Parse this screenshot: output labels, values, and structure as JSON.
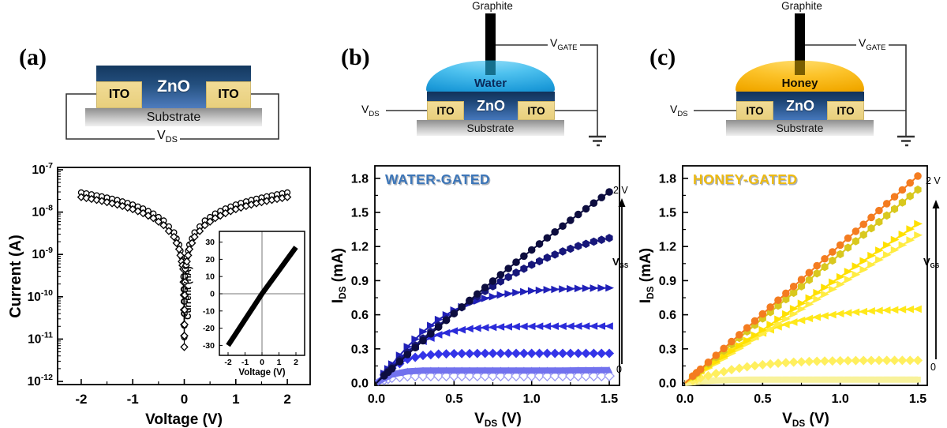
{
  "figure": {
    "panels": {
      "a": {
        "label": "(a)",
        "schematic": {
          "zno": "ZnO",
          "ito": "ITO",
          "substrate": "Substrate",
          "vds": {
            "pre": "V",
            "sub": "DS"
          }
        }
      },
      "b": {
        "label": "(b)",
        "schematic": {
          "graphite": "Graphite",
          "liquid": "Water",
          "liquid_color": "#29A8E0",
          "liquid_label_color": "#0A2A5A",
          "zno": "ZnO",
          "ito": "ITO",
          "substrate": "Substrate",
          "vds": {
            "pre": "V",
            "sub": "DS"
          },
          "vgate": {
            "pre": "V",
            "sub": "GATE"
          }
        }
      },
      "c": {
        "label": "(c)",
        "schematic": {
          "graphite": "Graphite",
          "liquid": "Honey",
          "liquid_color": "#F7B80E",
          "liquid_label_color": "#151000",
          "zno": "ZnO",
          "ito": "ITO",
          "substrate": "Substrate",
          "vds": {
            "pre": "V",
            "sub": "DS"
          },
          "vgate": {
            "pre": "V",
            "sub": "GATE"
          }
        }
      }
    }
  },
  "chart_data": [
    {
      "id": "iv-log",
      "panel": "a",
      "type": "scatter",
      "title": "",
      "xlabel": "Voltage (V)",
      "ylabel": "Current (A)",
      "y_scale": "log",
      "x_ticks": [
        -2,
        -1,
        0,
        1,
        2
      ],
      "x_minor_ticks": [
        -1.5,
        -0.5,
        0.5,
        1.5
      ],
      "y_tick_exponents": [
        -7,
        -8,
        -9,
        -10,
        -11,
        -12
      ],
      "xlim": [
        -2.45,
        2.45
      ],
      "ylim_exponents": [
        -12,
        -7
      ],
      "grid": false,
      "legend": "none",
      "series": [
        {
          "name": "sweep-1",
          "marker": "circle-open",
          "color": "#000000",
          "x": [
            -2,
            -1.8,
            -1.6,
            -1.4,
            -1.2,
            -1.0,
            -0.8,
            -0.6,
            -0.4,
            -0.2,
            -0.1,
            -0.05,
            -0.02,
            -0.01,
            -0.005,
            0,
            0.005,
            0.01,
            0.02,
            0.05,
            0.1,
            0.2,
            0.4,
            0.6,
            0.8,
            1.0,
            1.2,
            1.4,
            1.6,
            1.8,
            2
          ],
          "y": [
            2.9e-08,
            2.62e-08,
            2.34e-08,
            2.06e-08,
            1.78e-08,
            1.5e-08,
            1.21e-08,
            9.2e-09,
            6.3e-09,
            3.3e-09,
            1.7e-09,
            8.7e-10,
            6e-10,
            1.5e-10,
            4e-11,
            1.1e-11,
            4e-11,
            1.5e-10,
            6e-10,
            8.7e-10,
            1.7e-09,
            3.3e-09,
            6.3e-09,
            9.2e-09,
            1.21e-08,
            1.5e-08,
            1.78e-08,
            2.06e-08,
            2.34e-08,
            2.62e-08,
            2.9e-08
          ]
        },
        {
          "name": "sweep-2",
          "marker": "diamond-open",
          "color": "#000000",
          "x": [
            -2,
            -1.8,
            -1.6,
            -1.4,
            -1.2,
            -1.0,
            -0.8,
            -0.6,
            -0.4,
            -0.2,
            -0.1,
            -0.05,
            -0.02,
            -0.01,
            -0.005,
            0,
            0.005,
            0.01,
            0.02,
            0.05,
            0.1,
            0.2,
            0.4,
            0.6,
            0.8,
            1.0,
            1.2,
            1.4,
            1.6,
            1.8,
            2
          ],
          "y": [
            2.26e-08,
            2.04e-08,
            1.83e-08,
            1.61e-08,
            1.39e-08,
            1.17e-08,
            9.4e-09,
            7.2e-09,
            4.9e-09,
            2.6e-09,
            1.33e-09,
            6.8e-10,
            4.5e-10,
            1.1e-10,
            2.2e-11,
            6.5e-12,
            2.2e-11,
            1.1e-10,
            4.5e-10,
            6.8e-10,
            1.33e-09,
            2.6e-09,
            4.9e-09,
            7.2e-09,
            9.4e-09,
            1.17e-08,
            1.39e-08,
            1.61e-08,
            1.83e-08,
            2.04e-08,
            2.26e-08
          ]
        }
      ]
    },
    {
      "id": "iv-inset",
      "panel": "a",
      "type": "line",
      "xlabel": "Voltage (V)",
      "ylabel": "Current (nA)",
      "x_ticks": [
        -2,
        -1,
        0,
        1,
        2
      ],
      "y_ticks": [
        30,
        20,
        10,
        0,
        -10,
        -20,
        -30
      ],
      "xlim": [
        -2.5,
        2.5
      ],
      "ylim": [
        -36,
        33
      ],
      "crosshair": true,
      "series": [
        {
          "name": "linear-iv",
          "color": "#000000",
          "x": [
            -2,
            -1.5,
            -1,
            -0.5,
            0,
            0.5,
            1,
            1.5,
            2
          ],
          "y": [
            -30,
            -22.5,
            -15,
            -7.5,
            0,
            6.8,
            13.5,
            20.3,
            27
          ]
        }
      ]
    },
    {
      "id": "water-gated",
      "panel": "b",
      "type": "scatter-line",
      "title": "WATER-GATED",
      "title_color": "#3D76B8",
      "xlabel": {
        "pre": "V",
        "sub": "DS",
        "post": " (V)"
      },
      "ylabel": {
        "pre": "I",
        "sub": "DS",
        "post": " (mA)"
      },
      "x_ticks": [
        "0.0",
        "0.5",
        "1.0",
        "1.5"
      ],
      "y_ticks": [
        "0.0",
        "0.3",
        "0.6",
        "0.9",
        "1.2",
        "1.5",
        "1.8"
      ],
      "xlim": [
        0,
        1.57
      ],
      "ylim": [
        0,
        1.91
      ],
      "grid": false,
      "gate_annotation": {
        "top": "2 V",
        "bottom": "0",
        "arrow_label": {
          "pre": "V",
          "sub": "GS"
        }
      },
      "x": [
        0.05,
        0.1,
        0.2,
        0.3,
        0.4,
        0.5,
        0.6,
        0.7,
        0.8,
        0.9,
        1.0,
        1.1,
        1.2,
        1.3,
        1.4,
        1.5
      ],
      "series": [
        {
          "name": "vgs-2.0V",
          "marker": "circle",
          "color": "#0D0D3F",
          "y": [
            0.063,
            0.126,
            0.25,
            0.372,
            0.492,
            0.61,
            0.726,
            0.84,
            0.952,
            1.062,
            1.17,
            1.276,
            1.38,
            1.482,
            1.582,
            1.68
          ]
        },
        {
          "name": "vgs-step-5",
          "marker": "hexagon",
          "color": "#17177A",
          "y": [
            0.07,
            0.138,
            0.269,
            0.392,
            0.507,
            0.615,
            0.715,
            0.808,
            0.893,
            0.97,
            1.04,
            1.102,
            1.157,
            1.204,
            1.243,
            1.275
          ]
        },
        {
          "name": "vgs-step-4",
          "marker": "triangle-right",
          "color": "#2020B8",
          "y": [
            0.084,
            0.166,
            0.319,
            0.451,
            0.558,
            0.64,
            0.7,
            0.744,
            0.774,
            0.795,
            0.81,
            0.82,
            0.826,
            0.831,
            0.834,
            0.836
          ]
        },
        {
          "name": "vgs-step-3",
          "marker": "triangle-left",
          "color": "#2B2BD9",
          "y": [
            0.077,
            0.151,
            0.277,
            0.367,
            0.424,
            0.458,
            0.477,
            0.487,
            0.493,
            0.496,
            0.498,
            0.499,
            0.499,
            0.5,
            0.5,
            0.5
          ]
        },
        {
          "name": "vgs-step-2",
          "marker": "diamond",
          "color": "#3434E8",
          "y": [
            0.07,
            0.131,
            0.209,
            0.242,
            0.254,
            0.258,
            0.259,
            0.26,
            0.26,
            0.26,
            0.26,
            0.26,
            0.26,
            0.26,
            0.26,
            0.26
          ]
        },
        {
          "name": "vgs-step-1",
          "marker": "triangle-up",
          "color": "#7272EE",
          "band": true,
          "y": [
            0.042,
            0.075,
            0.102,
            0.109,
            0.11,
            0.11,
            0.11,
            0.11,
            0.11,
            0.11,
            0.11,
            0.11,
            0.11,
            0.111,
            0.112,
            0.113
          ]
        },
        {
          "name": "vgs-0V",
          "marker": "diamond-open",
          "color": "#9A9AF2",
          "y": [
            0.028,
            0.047,
            0.06,
            0.062,
            0.062,
            0.062,
            0.062,
            0.062,
            0.062,
            0.062,
            0.062,
            0.062,
            0.062,
            0.062,
            0.062,
            0.062
          ]
        }
      ]
    },
    {
      "id": "honey-gated",
      "panel": "c",
      "type": "scatter-line",
      "title": "HONEY-GATED",
      "title_color": "#EDBA12",
      "xlabel": {
        "pre": "V",
        "sub": "DS",
        "post": " (V)"
      },
      "ylabel": {
        "pre": "I",
        "sub": "DS",
        "post": " (mA)"
      },
      "x_ticks": [
        "0.0",
        "0.5",
        "1.0",
        "1.5"
      ],
      "y_ticks": [
        "0.0",
        "0.3",
        "0.6",
        "0.9",
        "1.2",
        "1.5",
        "1.8"
      ],
      "xlim": [
        0,
        1.57
      ],
      "ylim": [
        0,
        1.91
      ],
      "grid": false,
      "gate_annotation": {
        "top": "2 V",
        "bottom": "0",
        "arrow_label": {
          "pre": "V",
          "sub": "GS"
        }
      },
      "x": [
        0.05,
        0.1,
        0.2,
        0.3,
        0.4,
        0.5,
        0.6,
        0.7,
        0.8,
        0.9,
        1.0,
        1.1,
        1.2,
        1.3,
        1.4,
        1.5
      ],
      "series": [
        {
          "name": "vgs-2.0V",
          "marker": "circle",
          "color": "#F47C20",
          "y": [
            0.061,
            0.121,
            0.243,
            0.364,
            0.485,
            0.607,
            0.728,
            0.849,
            0.97,
            1.092,
            1.213,
            1.334,
            1.456,
            1.577,
            1.698,
            1.82
          ]
        },
        {
          "name": "vgs-step-5",
          "marker": "hexagon",
          "color": "#D9C81E",
          "y": [
            0.057,
            0.113,
            0.227,
            0.34,
            0.453,
            0.567,
            0.68,
            0.793,
            0.907,
            1.02,
            1.133,
            1.247,
            1.36,
            1.473,
            1.587,
            1.7
          ]
        },
        {
          "name": "vgs-step-4",
          "marker": "triangle-right",
          "color": "#FFE000",
          "y": [
            0.047,
            0.093,
            0.187,
            0.28,
            0.373,
            0.467,
            0.56,
            0.653,
            0.747,
            0.84,
            0.933,
            1.027,
            1.12,
            1.213,
            1.307,
            1.4
          ]
        },
        {
          "name": "vgs-step-3",
          "marker": "triangle-right",
          "color": "#FFEC42",
          "y": [
            0.043,
            0.087,
            0.173,
            0.26,
            0.347,
            0.433,
            0.52,
            0.607,
            0.693,
            0.78,
            0.867,
            0.953,
            1.04,
            1.127,
            1.213,
            1.3
          ]
        },
        {
          "name": "vgs-step-2",
          "marker": "triangle-left",
          "color": "#FFE81A",
          "y": [
            0.053,
            0.106,
            0.206,
            0.296,
            0.375,
            0.44,
            0.494,
            0.535,
            0.567,
            0.591,
            0.61,
            0.623,
            0.633,
            0.64,
            0.646,
            0.65
          ]
        },
        {
          "name": "vgs-step-1",
          "marker": "diamond",
          "color": "#FFEF5E",
          "y": [
            0.022,
            0.044,
            0.083,
            0.117,
            0.142,
            0.161,
            0.174,
            0.183,
            0.189,
            0.193,
            0.195,
            0.197,
            0.198,
            0.199,
            0.199,
            0.199
          ]
        },
        {
          "name": "vgs-0V",
          "marker": "square",
          "color": "#F8F29B",
          "band": true,
          "y": [
            0.007,
            0.014,
            0.023,
            0.027,
            0.029,
            0.03,
            0.03,
            0.03,
            0.03,
            0.03,
            0.03,
            0.03,
            0.03,
            0.03,
            0.03,
            0.03
          ]
        }
      ]
    }
  ]
}
